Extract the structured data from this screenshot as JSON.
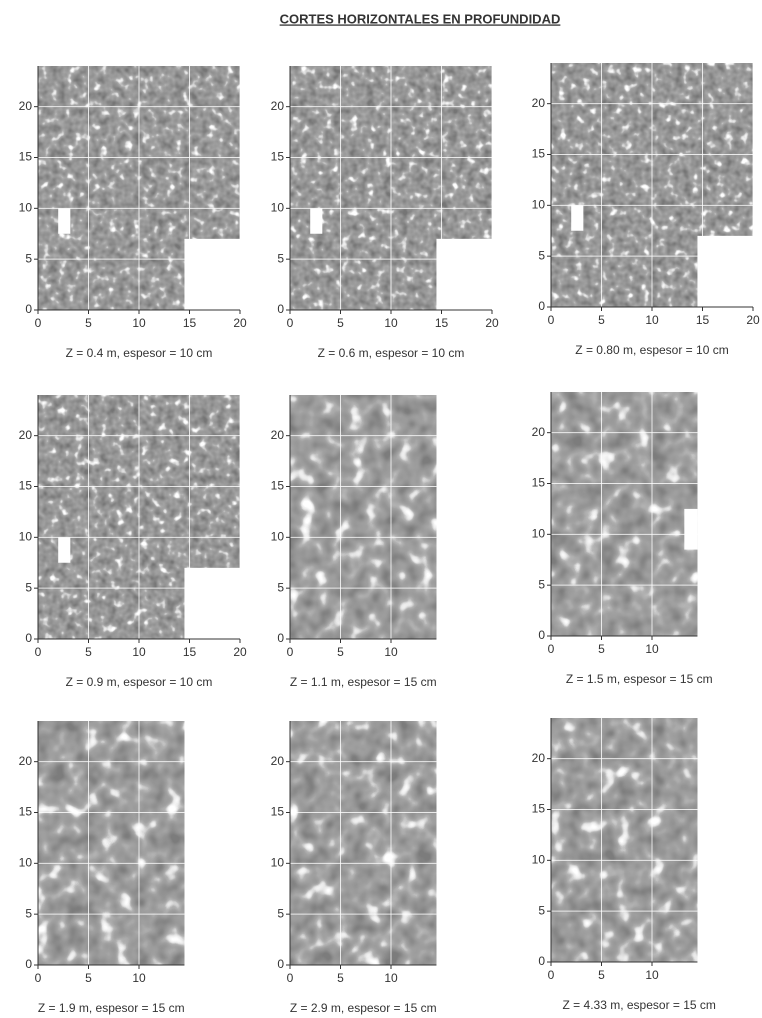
{
  "title": "CORTES HORIZONTALES EN PROFUNDIDAD",
  "panels": [
    {
      "caption": "Z = 0.4 m, espesor = 10 cm",
      "xlim": [
        0,
        20
      ],
      "ylim": [
        0,
        24
      ],
      "xticks": [
        0,
        5,
        10,
        15,
        20
      ],
      "yticks": [
        0,
        5,
        10,
        15,
        20
      ]
    },
    {
      "caption": "Z = 0.6 m, espesor = 10 cm",
      "xlim": [
        0,
        20
      ],
      "ylim": [
        0,
        24
      ],
      "xticks": [
        0,
        5,
        10,
        15,
        20
      ],
      "yticks": [
        0,
        5,
        10,
        15,
        20
      ]
    },
    {
      "caption": "Z = 0.80 m, espesor = 10 cm",
      "xlim": [
        0,
        20
      ],
      "ylim": [
        0,
        24
      ],
      "xticks": [
        0,
        5,
        10,
        15,
        20
      ],
      "yticks": [
        0,
        5,
        10,
        15,
        20
      ]
    },
    {
      "caption": "Z = 0.9 m, espesor = 10 cm",
      "xlim": [
        0,
        20
      ],
      "ylim": [
        0,
        24
      ],
      "xticks": [
        0,
        5,
        10,
        15,
        20
      ],
      "yticks": [
        0,
        5,
        10,
        15,
        20
      ]
    },
    {
      "caption": "Z = 1.1 m, espesor = 15 cm",
      "xlim": [
        0,
        14.5
      ],
      "ylim": [
        0,
        24
      ],
      "xticks": [
        0,
        5,
        10
      ],
      "yticks": [
        0,
        5,
        10,
        15,
        20
      ]
    },
    {
      "caption": "Z = 1.5 m, espesor = 15 cm",
      "xlim": [
        0,
        14.5
      ],
      "ylim": [
        0,
        24
      ],
      "xticks": [
        0,
        5,
        10
      ],
      "yticks": [
        0,
        5,
        10,
        15,
        20
      ]
    },
    {
      "caption": "Z = 1.9 m, espesor = 15 cm",
      "xlim": [
        0,
        14.5
      ],
      "ylim": [
        0,
        24
      ],
      "xticks": [
        0,
        5,
        10
      ],
      "yticks": [
        0,
        5,
        10,
        15,
        20
      ]
    },
    {
      "caption": "Z = 2.9 m, espesor = 15 cm",
      "xlim": [
        0,
        14.5
      ],
      "ylim": [
        0,
        24
      ],
      "xticks": [
        0,
        5,
        10
      ],
      "yticks": [
        0,
        5,
        10,
        15,
        20
      ]
    },
    {
      "caption": "Z = 4.33 m, espesor = 15 cm",
      "xlim": [
        0,
        14.5
      ],
      "ylim": [
        0,
        24
      ],
      "xticks": [
        0,
        5,
        10
      ],
      "yticks": [
        0,
        5,
        10,
        15,
        20
      ]
    }
  ]
}
